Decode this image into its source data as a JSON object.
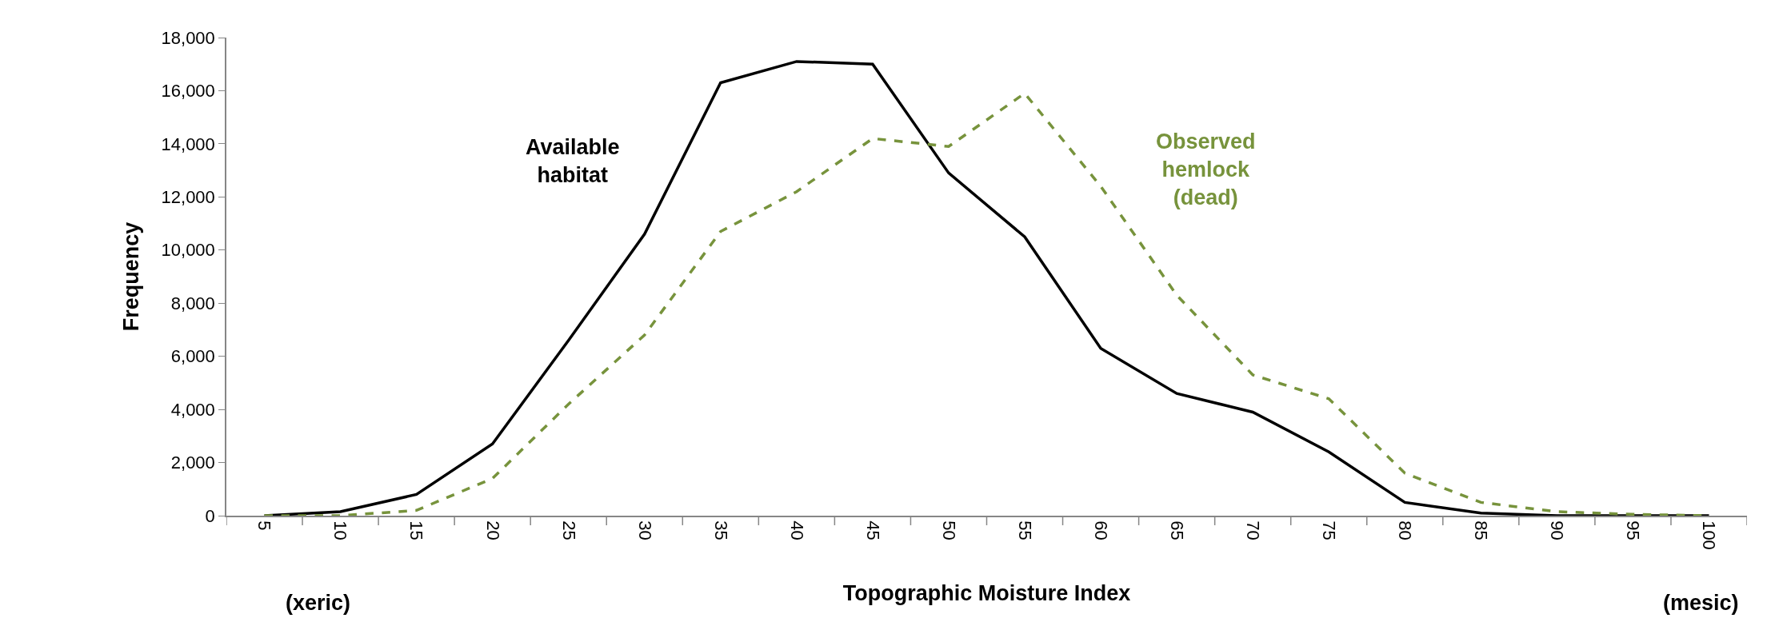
{
  "chart_data": {
    "type": "line",
    "xlabel": "Topographic Moisture Index",
    "ylabel": "Frequency",
    "categories": [
      "5",
      "10",
      "15",
      "20",
      "25",
      "30",
      "35",
      "40",
      "45",
      "50",
      "55",
      "60",
      "65",
      "70",
      "75",
      "80",
      "85",
      "90",
      "95",
      "100"
    ],
    "series": [
      {
        "name": "Available habitat",
        "color": "#000000",
        "line_style": "solid",
        "values": [
          0,
          150,
          800,
          2700,
          6600,
          10600,
          16300,
          17100,
          17000,
          12900,
          10500,
          6300,
          4600,
          3900,
          2400,
          500,
          100,
          0,
          0,
          0
        ]
      },
      {
        "name": "Observed hemlock (dead)",
        "color": "#77933c",
        "line_style": "dashed",
        "values": [
          0,
          0,
          200,
          1400,
          4200,
          6800,
          10700,
          12200,
          14200,
          13900,
          15900,
          12400,
          8300,
          5300,
          4400,
          1600,
          500,
          150,
          50,
          0
        ]
      }
    ],
    "ylim": [
      0,
      18000
    ],
    "yticks": [
      0,
      {
        "value": 2000,
        "label": "2,000"
      },
      {
        "value": 4000,
        "label": "4,000"
      },
      {
        "value": 6000,
        "label": "6,000"
      },
      {
        "value": 8000,
        "label": "8,000"
      },
      {
        "value": 10000,
        "label": "10,000"
      },
      {
        "value": 12000,
        "label": "12,000"
      },
      {
        "value": 14000,
        "label": "14,000"
      },
      {
        "value": 16000,
        "label": "16,000"
      },
      {
        "value": 18000,
        "label": "18,000"
      }
    ],
    "annotations": [
      "(xeric)",
      "(mesic)"
    ],
    "legend": false,
    "marker": "none"
  }
}
